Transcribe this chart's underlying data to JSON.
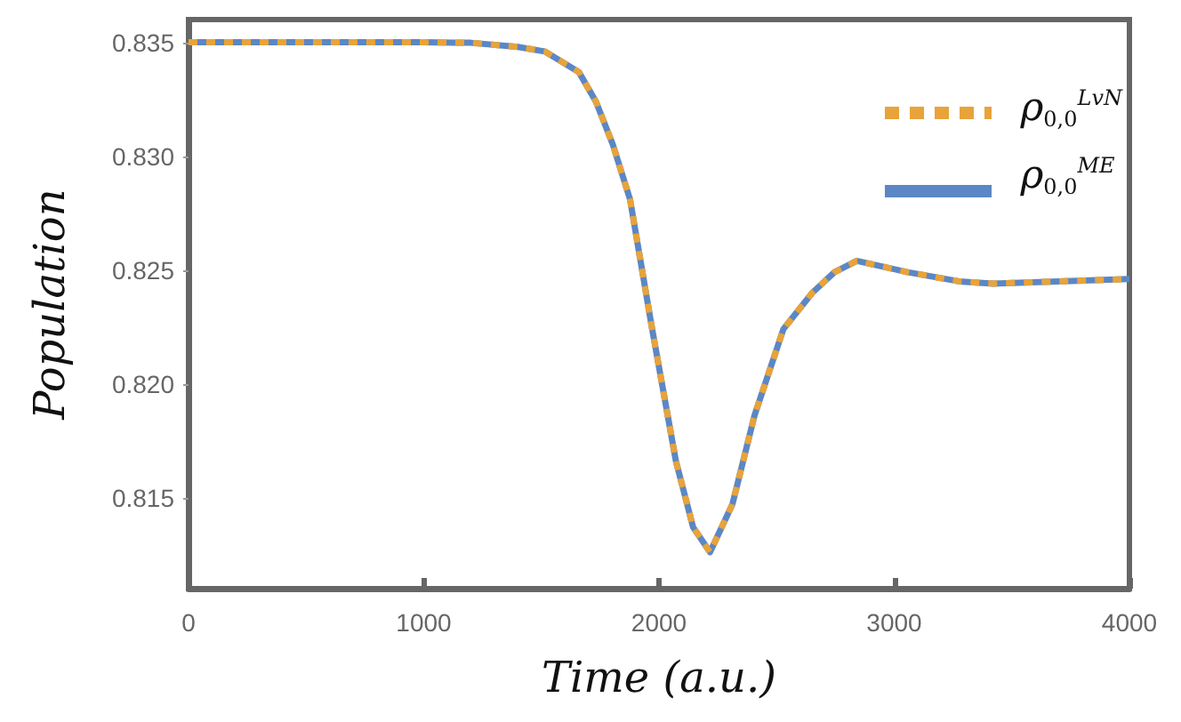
{
  "chart_data": {
    "type": "line",
    "xlabel": "Time (a.u.)",
    "ylabel": "Population",
    "xlim": [
      0,
      4000
    ],
    "xticks": [
      0,
      1000,
      2000,
      3000,
      4000
    ],
    "ylim": [
      0.811,
      0.836
    ],
    "yticks": [
      0.815,
      {
        "value": 0.82,
        "label": "0.820"
      },
      0.825,
      {
        "value": 0.83,
        "label": "0.830"
      },
      0.835
    ],
    "grid": false,
    "legend": "top right",
    "marker": "none",
    "series": [
      {
        "name": "ρ$_{0,0}$$^{LvN}$",
        "color": "#e8a33a",
        "line_style": "dotted",
        "x": [
          0,
          500,
          1000,
          1200,
          1400,
          1514,
          1659,
          1732,
          1804,
          1877,
          1971,
          2072,
          2145,
          2217,
          2312,
          2406,
          2529,
          2652,
          2746,
          2841,
          3058,
          3275,
          3420,
          3700,
          4000
        ],
        "values": [
          0.835,
          0.835,
          0.835,
          0.83498,
          0.8348,
          0.8346,
          0.8337,
          0.8324,
          0.8305,
          0.8281,
          0.8224,
          0.8166,
          0.8137,
          0.8126,
          0.8147,
          0.8186,
          0.8224,
          0.824,
          0.8249,
          0.8254,
          0.8249,
          0.8245,
          0.8244,
          0.8245,
          0.8246
        ]
      },
      {
        "name": "ρ$_{0,0}$$^{ME}$",
        "color": "#5b87c5",
        "line_style": "solid",
        "x": [
          0,
          500,
          1000,
          1200,
          1400,
          1514,
          1659,
          1732,
          1804,
          1877,
          1971,
          2072,
          2145,
          2217,
          2312,
          2406,
          2529,
          2652,
          2746,
          2841,
          3058,
          3275,
          3420,
          3700,
          4000
        ],
        "values": [
          0.835,
          0.835,
          0.835,
          0.83498,
          0.8348,
          0.8346,
          0.8337,
          0.8324,
          0.8305,
          0.8281,
          0.8224,
          0.8166,
          0.8137,
          0.8126,
          0.8147,
          0.8186,
          0.8224,
          0.824,
          0.8249,
          0.8254,
          0.8249,
          0.8245,
          0.8244,
          0.8245,
          0.8246
        ]
      }
    ]
  }
}
